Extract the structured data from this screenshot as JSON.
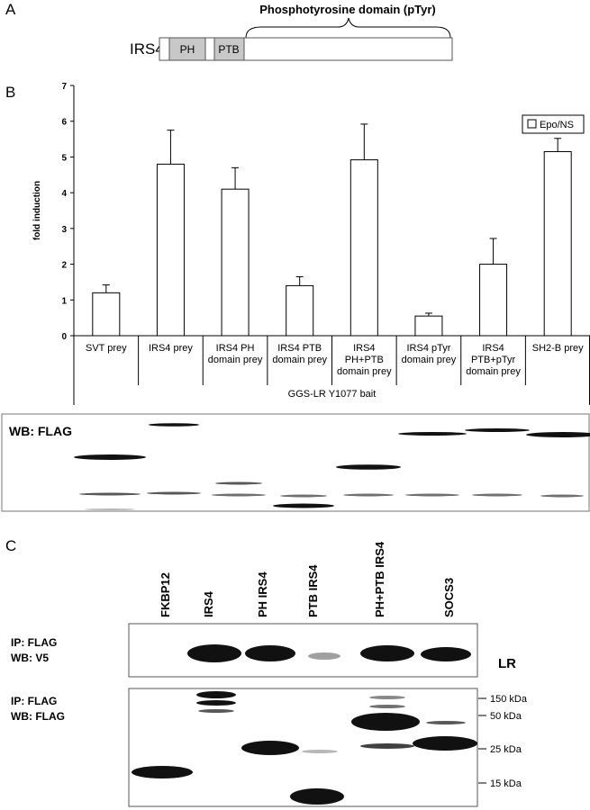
{
  "panel_a": {
    "label": "A",
    "title": "Phosphotyrosine domain (pTyr)",
    "protein": "IRS4",
    "domains": [
      "PH",
      "PTB"
    ]
  },
  "chart_data": {
    "type": "bar",
    "label": "B",
    "ylabel": "fold induction",
    "xlabel": "GGS-LR Y1077 bait",
    "categories": [
      "SVT prey",
      "IRS4 prey",
      "IRS4 PH\ndomain prey",
      "IRS4 PTB\ndomain prey",
      "IRS4\nPH+PTB\ndomain prey",
      "IRS4 pTyr\ndomain prey",
      "IRS4\nPTB+pTyr\ndomain prey",
      "SH2-B prey"
    ],
    "series": [
      {
        "name": "Epo/NS",
        "color": "#ffffff",
        "values": [
          1.2,
          4.8,
          4.1,
          1.4,
          4.92,
          0.55,
          2.0,
          5.15
        ],
        "errors": [
          0.22,
          0.95,
          0.6,
          0.25,
          1.0,
          0.08,
          0.72,
          0.37
        ]
      }
    ],
    "ylim": [
      0,
      7
    ],
    "yticks": [
      0,
      1,
      2,
      3,
      4,
      5,
      6,
      7
    ],
    "grid": false,
    "legend": "top-right"
  },
  "blot_b": {
    "label": "WB: FLAG"
  },
  "panel_c": {
    "label": "C",
    "lanes": [
      "FKBP12",
      "IRS4",
      "PH IRS4",
      "PTB IRS4",
      "PH+PTB IRS4",
      "SOCS3"
    ],
    "top_blot": {
      "lines": [
        "IP: FLAG",
        "WB: V5"
      ],
      "target": "LR"
    },
    "bottom_blot": {
      "lines": [
        "IP: FLAG",
        "WB: FLAG"
      ],
      "markers": [
        "150 kDa",
        "50 kDa",
        "25 kDa",
        "15 kDa"
      ]
    }
  }
}
